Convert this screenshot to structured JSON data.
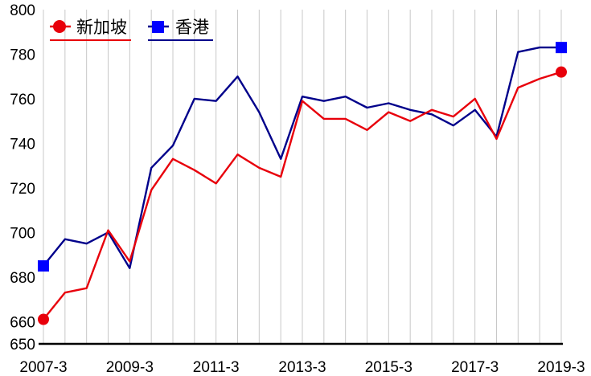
{
  "chart_data": {
    "type": "line",
    "title": "",
    "xlabel": "",
    "ylabel": "",
    "ylim": [
      650,
      800
    ],
    "yticks": [
      650,
      660,
      680,
      700,
      720,
      740,
      760,
      780,
      800
    ],
    "x_tick_labels": [
      "2007-3",
      "2009-3",
      "2011-3",
      "2013-3",
      "2015-3",
      "2017-3",
      "2019-3"
    ],
    "x": [
      "2007-3",
      "2007-9",
      "2008-3",
      "2008-9",
      "2009-3",
      "2009-9",
      "2010-3",
      "2010-9",
      "2011-3",
      "2011-9",
      "2012-3",
      "2012-9",
      "2013-3",
      "2013-9",
      "2014-3",
      "2014-9",
      "2015-3",
      "2015-9",
      "2016-3",
      "2016-9",
      "2017-3",
      "2017-9",
      "2018-3",
      "2018-9",
      "2019-3"
    ],
    "grid": "vertical",
    "legend_position": "top-left",
    "series": [
      {
        "name": "新加坡",
        "color": "#e8000b",
        "marker": "circle",
        "values": [
          661,
          673,
          675,
          701,
          687,
          719,
          733,
          728,
          722,
          735,
          729,
          725,
          759,
          751,
          751,
          746,
          754,
          750,
          755,
          752,
          760,
          742,
          765,
          769,
          772
        ]
      },
      {
        "name": "香港",
        "color": "#00008b",
        "marker": "square",
        "marker_color": "#0000ff",
        "values": [
          685,
          697,
          695,
          700,
          684,
          729,
          739,
          760,
          759,
          770,
          754,
          733,
          761,
          759,
          761,
          756,
          758,
          755,
          753,
          748,
          755,
          743,
          781,
          783,
          783
        ]
      }
    ]
  }
}
